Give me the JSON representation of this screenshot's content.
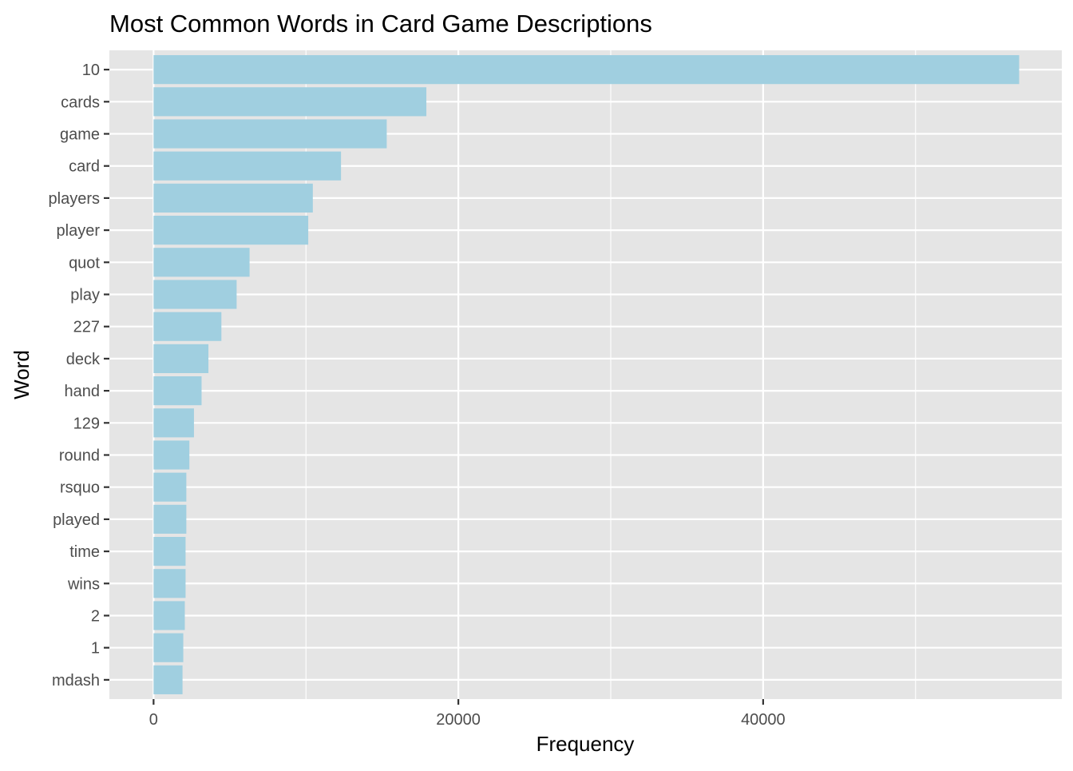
{
  "chart_data": {
    "type": "bar",
    "orientation": "horizontal",
    "title": "Most Common Words in Card Game Descriptions",
    "xlabel": "Frequency",
    "ylabel": "Word",
    "categories": [
      "10",
      "cards",
      "game",
      "card",
      "players",
      "player",
      "quot",
      "play",
      "227",
      "deck",
      "hand",
      "129",
      "round",
      "rsquo",
      "played",
      "time",
      "wins",
      "2",
      "1",
      "mdash"
    ],
    "values": [
      56800,
      17900,
      15300,
      12300,
      10450,
      10150,
      6300,
      5450,
      4450,
      3600,
      3150,
      2650,
      2350,
      2150,
      2150,
      2100,
      2100,
      2050,
      1950,
      1900
    ],
    "xlim": [
      -2900,
      59600
    ],
    "xticks": [
      0,
      20000,
      40000
    ],
    "xtick_labels": [
      "0",
      "20000",
      "40000"
    ],
    "grid": true,
    "colors": {
      "bar": "#a0cfe0",
      "panel": "#e5e5e5",
      "grid": "#ffffff",
      "text": "#4d4d4d",
      "title": "#000000"
    }
  }
}
